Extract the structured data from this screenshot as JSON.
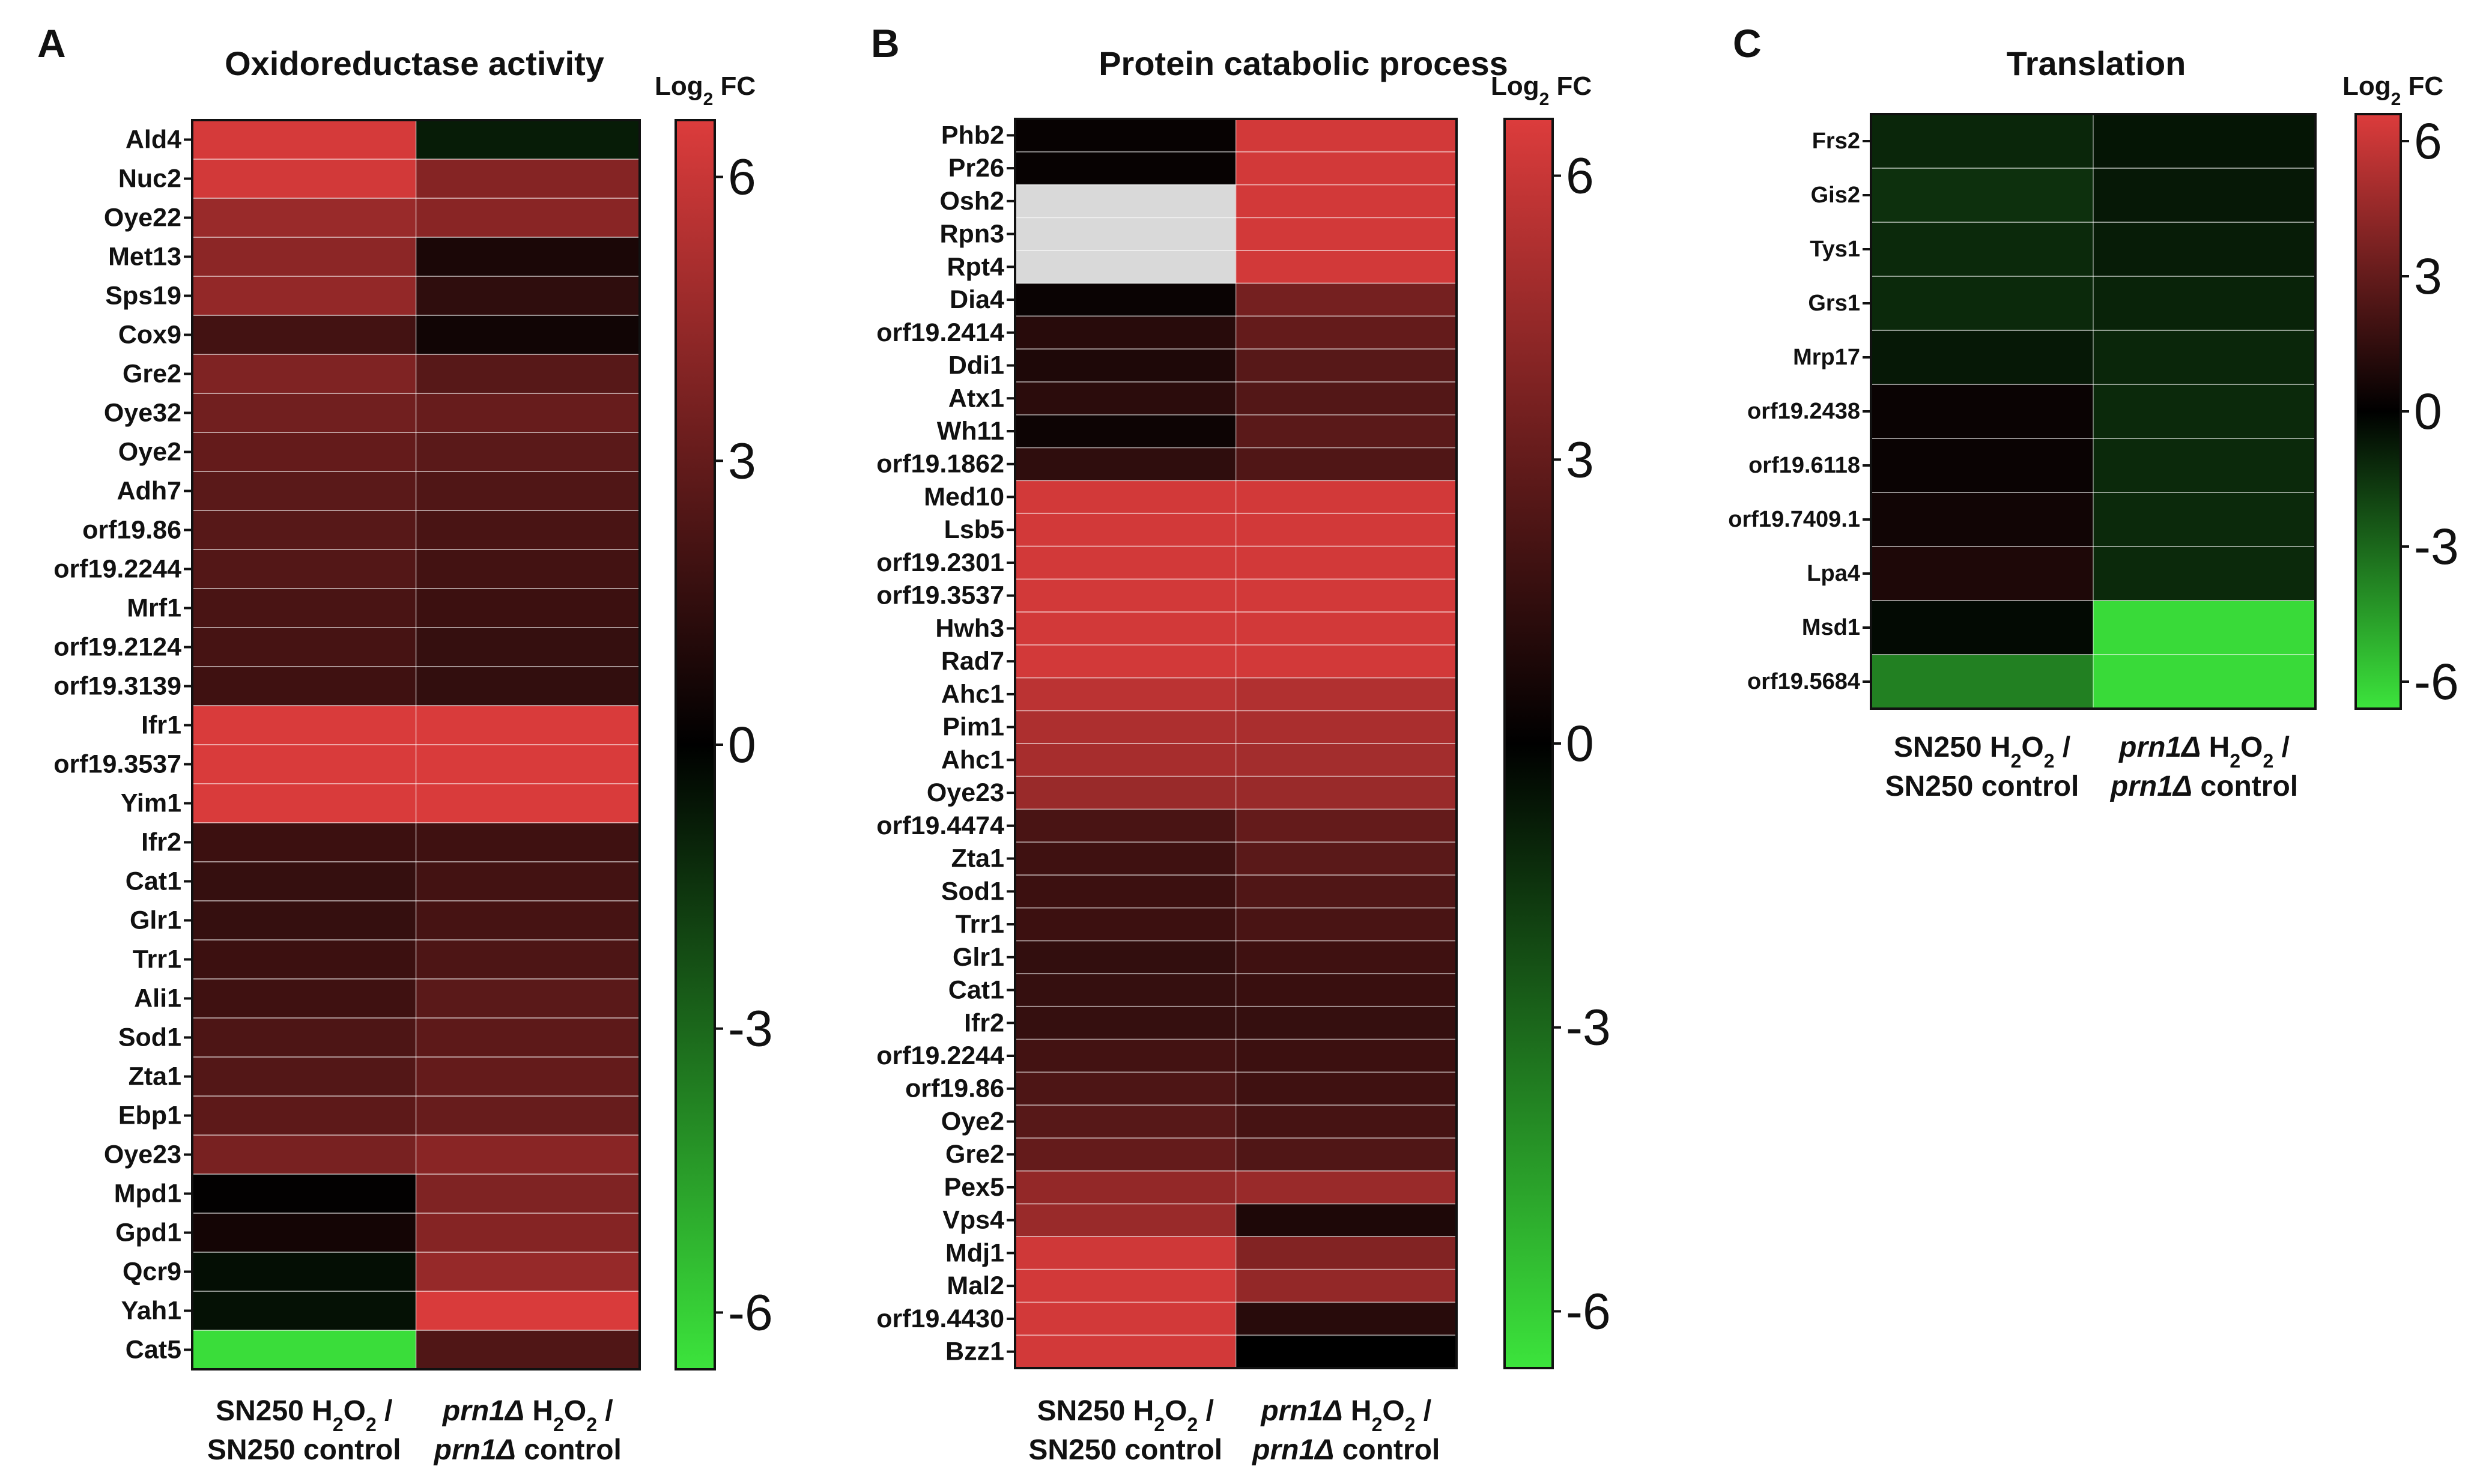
{
  "chart_data": [
    {
      "type": "heatmap",
      "panel_label": "A",
      "title": "Oxidoreductase activity",
      "colorbar_title": "Log",
      "colorbar_sub": "2",
      "colorbar_unit": " FC",
      "colorbar_ticks": [
        "6",
        "3",
        "0",
        "-3",
        "-6"
      ],
      "colorbar_tick_values": [
        6,
        3,
        0,
        -3,
        -6
      ],
      "zlim": [
        -6.6,
        6.6
      ],
      "columns": [
        {
          "line1": "SN250 H",
          "sub": "2",
          "line1_end": "O",
          "sub2": "2",
          "slash": " /",
          "line2": "SN250 control"
        },
        {
          "gene": "prn1Δ",
          "line1": " H",
          "sub": "2",
          "line1_end": "O",
          "sub2": "2",
          "slash": " /",
          "gene2": "prn1Δ",
          "line2": " control"
        }
      ],
      "rows": [
        "Ald4",
        "Nuc2",
        "Oye22",
        "Met13",
        "Sps19",
        "Cox9",
        "Gre2",
        "Oye32",
        "Oye2",
        "Adh7",
        "orf19.86",
        "orf19.2244",
        "Mrf1",
        "orf19.2124",
        "orf19.3139",
        "Ifr1",
        "orf19.3537",
        "Yim1",
        "Ifr2",
        "Cat1",
        "Glr1",
        "Trr1",
        "Ali1",
        "Sod1",
        "Zta1",
        "Ebp1",
        "Oye23",
        "Mpd1",
        "Gpd1",
        "Qcr9",
        "Yah1",
        "Cat5"
      ],
      "values": [
        [
          6.4,
          -0.8
        ],
        [
          6.3,
          4.0
        ],
        [
          4.6,
          4.1
        ],
        [
          4.2,
          0.8
        ],
        [
          4.4,
          1.4
        ],
        [
          2.0,
          0.5
        ],
        [
          3.8,
          2.6
        ],
        [
          3.4,
          3.1
        ],
        [
          3.0,
          2.7
        ],
        [
          2.7,
          2.4
        ],
        [
          2.6,
          2.2
        ],
        [
          2.5,
          2.0
        ],
        [
          2.2,
          1.8
        ],
        [
          2.1,
          1.6
        ],
        [
          1.9,
          1.5
        ],
        [
          6.5,
          6.5
        ],
        [
          6.5,
          6.5
        ],
        [
          6.5,
          6.5
        ],
        [
          1.8,
          1.9
        ],
        [
          1.6,
          2.0
        ],
        [
          1.6,
          2.1
        ],
        [
          1.8,
          2.3
        ],
        [
          1.9,
          2.7
        ],
        [
          2.3,
          2.8
        ],
        [
          2.5,
          3.0
        ],
        [
          2.8,
          3.1
        ],
        [
          3.6,
          4.1
        ],
        [
          0.1,
          3.8
        ],
        [
          0.6,
          4.0
        ],
        [
          -0.4,
          4.5
        ],
        [
          -0.5,
          6.5
        ],
        [
          -6.4,
          2.4
        ]
      ]
    },
    {
      "type": "heatmap",
      "panel_label": "B",
      "title": "Protein catabolic process",
      "colorbar_title": "Log",
      "colorbar_sub": "2",
      "colorbar_unit": " FC",
      "colorbar_ticks": [
        "6",
        "3",
        "0",
        "-3",
        "-6"
      ],
      "colorbar_tick_values": [
        6,
        3,
        0,
        -3,
        -6
      ],
      "zlim": [
        -6.6,
        6.6
      ],
      "columns": [
        {
          "line1": "SN250 H",
          "sub": "2",
          "line1_end": "O",
          "sub2": "2",
          "slash": " /",
          "line2": "SN250 control"
        },
        {
          "gene": "prn1Δ",
          "line1": " H",
          "sub": "2",
          "line1_end": "O",
          "sub2": "2",
          "slash": " /",
          "gene2": "prn1Δ",
          "line2": " control"
        }
      ],
      "rows": [
        "Phb2",
        "Pr26",
        "Osh2",
        "Rpn3",
        "Rpt4",
        "Dia4",
        "orf19.2414",
        "Ddi1",
        "Atx1",
        "Wh11",
        "orf19.1862",
        "Med10",
        "Lsb5",
        "orf19.2301",
        "orf19.3537",
        "Hwh3",
        "Rad7",
        "Ahc1",
        "Pim1",
        "Ahc1",
        "Oye23",
        "orf19.4474",
        "Zta1",
        "Sod1",
        "Trr1",
        "Glr1",
        "Cat1",
        "Ifr2",
        "orf19.2244",
        "orf19.86",
        "Oye2",
        "Gre2",
        "Pex5",
        "Vps4",
        "Mdj1",
        "Mal2",
        "orf19.4430",
        "Bzz1"
      ],
      "values": [
        [
          0.2,
          6.3
        ],
        [
          0.2,
          6.3
        ],
        [
          null,
          6.3
        ],
        [
          null,
          6.3
        ],
        [
          null,
          6.3
        ],
        [
          0.3,
          3.5
        ],
        [
          1.2,
          3.0
        ],
        [
          0.9,
          2.6
        ],
        [
          1.3,
          2.5
        ],
        [
          0.4,
          2.7
        ],
        [
          1.4,
          2.4
        ],
        [
          6.3,
          6.3
        ],
        [
          6.3,
          6.3
        ],
        [
          6.3,
          6.3
        ],
        [
          6.3,
          6.3
        ],
        [
          6.3,
          6.3
        ],
        [
          6.3,
          6.3
        ],
        [
          5.6,
          5.3
        ],
        [
          5.2,
          5.1
        ],
        [
          5.0,
          4.9
        ],
        [
          4.6,
          4.6
        ],
        [
          2.2,
          3.0
        ],
        [
          1.9,
          2.7
        ],
        [
          1.8,
          2.4
        ],
        [
          1.8,
          2.2
        ],
        [
          1.5,
          1.9
        ],
        [
          1.6,
          1.7
        ],
        [
          1.6,
          1.6
        ],
        [
          2.0,
          1.8
        ],
        [
          2.3,
          1.9
        ],
        [
          2.6,
          2.1
        ],
        [
          3.0,
          2.4
        ],
        [
          4.4,
          4.6
        ],
        [
          4.6,
          0.9
        ],
        [
          6.2,
          3.9
        ],
        [
          6.3,
          4.4
        ],
        [
          6.3,
          1.2
        ],
        [
          6.3,
          0.0
        ]
      ]
    },
    {
      "type": "heatmap",
      "panel_label": "C",
      "title": "Translation",
      "colorbar_title": "Log",
      "colorbar_sub": "2",
      "colorbar_unit": " FC",
      "colorbar_ticks": [
        "6",
        "3",
        "0",
        "-3",
        "-6"
      ],
      "colorbar_tick_values": [
        6,
        3,
        0,
        -3,
        -6
      ],
      "zlim": [
        -6.6,
        6.6
      ],
      "columns": [
        {
          "line1": "SN250 H",
          "sub": "2",
          "line1_end": "O",
          "sub2": "2",
          "slash": " /",
          "line2": "SN250 control"
        },
        {
          "gene": "prn1Δ",
          "line1": " H",
          "sub": "2",
          "line1_end": "O",
          "sub2": "2",
          "slash": " /",
          "gene2": "prn1Δ",
          "line2": " control"
        }
      ],
      "rows": [
        "Frs2",
        "Gis2",
        "Tys1",
        "Grs1",
        "Mrp17",
        "orf19.2438",
        "orf19.6118",
        "orf19.7409.1",
        "Lpa4",
        "Msd1",
        "orf19.5684"
      ],
      "values": [
        [
          -1.1,
          -0.6
        ],
        [
          -1.4,
          -0.7
        ],
        [
          -1.2,
          -0.8
        ],
        [
          -1.2,
          -1.0
        ],
        [
          -0.7,
          -1.1
        ],
        [
          0.3,
          -1.2
        ],
        [
          0.3,
          -1.2
        ],
        [
          0.5,
          -1.2
        ],
        [
          0.9,
          -1.2
        ],
        [
          -0.3,
          -6.3
        ],
        [
          -3.7,
          -6.3
        ]
      ]
    }
  ]
}
